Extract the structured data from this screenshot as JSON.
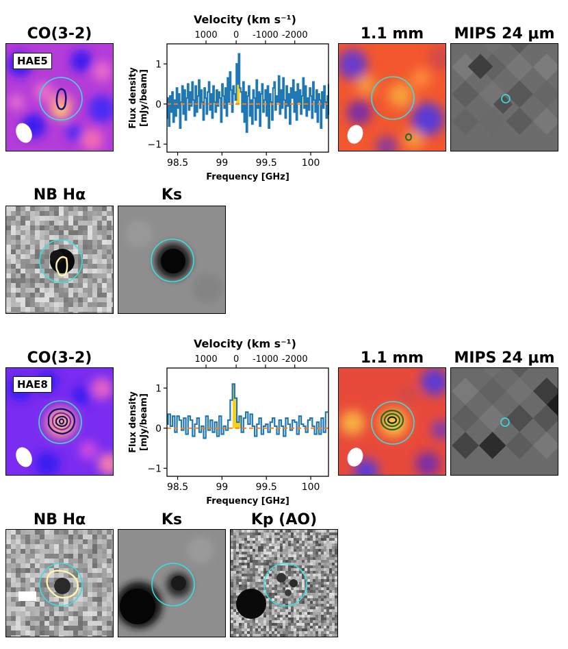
{
  "colors": {
    "spectrum_line": "#1f77b4",
    "zero_line": "#ff7f0e",
    "line_fill": "#f7d11a",
    "aperture": "#38e0e0",
    "co_contour": "#0d0b7a",
    "mm_contour": "#1e6b1e",
    "ha_contour": "#fff3b0"
  },
  "source1": {
    "id": "HAE5",
    "titles": {
      "co": "CO(3-2)",
      "mm": "1.1 mm",
      "mips": "MIPS 24 μm",
      "nb": "NB Hα",
      "ks": "Ks"
    }
  },
  "source2": {
    "id": "HAE8",
    "titles": {
      "co": "CO(3-2)",
      "mm": "1.1 mm",
      "mips": "MIPS 24 μm",
      "nb": "NB Hα",
      "ks": "Ks",
      "kp": "Kp (AO)"
    }
  },
  "chart_data": [
    {
      "type": "line",
      "source": "HAE5",
      "drawstyle": "steps-mid",
      "xlabel": "Frequency [GHz]",
      "ylabel": "Flux density [mJy/beam]",
      "top_xlabel": "Velocity (km s⁻¹)",
      "top_tick_labels": [
        "1000",
        "0",
        "-1000",
        "-2000"
      ],
      "top_tick_freq": [
        98.82,
        99.16,
        99.49,
        99.82
      ],
      "xlim": [
        98.38,
        100.2
      ],
      "ylim": [
        -1.2,
        1.5
      ],
      "xticks": [
        98.5,
        99,
        99.5,
        100
      ],
      "xtick_labels": [
        "98.5",
        "99",
        "99.5",
        "100"
      ],
      "yticks": [
        -1,
        0,
        1
      ],
      "ytick_labels": [
        "−1",
        "0",
        "1"
      ],
      "highlight_range": [
        99.16,
        99.2
      ],
      "x_start": 98.38,
      "x_step": 0.0125,
      "values": [
        -0.35,
        0.15,
        -0.55,
        0.2,
        -0.2,
        0.3,
        -0.45,
        0.1,
        -0.3,
        0.4,
        -0.1,
        0.25,
        -0.6,
        0.05,
        0.45,
        -0.25,
        0.35,
        -0.4,
        0.15,
        0.5,
        -0.15,
        0.3,
        -0.05,
        0.55,
        0.1,
        -0.3,
        0.45,
        -0.2,
        0.2,
        0.6,
        -0.1,
        0.35,
        0.05,
        -0.4,
        0.4,
        0.15,
        -0.25,
        0.3,
        0.55,
        -0.15,
        0.25,
        -0.35,
        0.45,
        0.05,
        -0.2,
        0.35,
        -0.05,
        0.3,
        0.15,
        -0.45,
        0.5,
        0.2,
        -0.1,
        0.4,
        -0.3,
        0.65,
        0.05,
        0.8,
        0.35,
        -0.2,
        0.45,
        0.25,
        0.1,
        1.0,
        0.5,
        1.25,
        0.4,
        0.3,
        -0.2,
        0.55,
        -0.45,
        0.3,
        -0.7,
        0.2,
        0.45,
        -0.3,
        0.1,
        -0.5,
        0.35,
        0.15,
        -0.4,
        0.6,
        -0.1,
        0.3,
        -0.55,
        0.25,
        0.5,
        -0.2,
        0.1,
        0.35,
        -0.3,
        0.45,
        -0.6,
        0.25,
        0.05,
        -0.4,
        0.4,
        0.55,
        -0.15,
        0.2,
        0.05,
        0.7,
        -0.25,
        0.35,
        -0.1,
        0.65,
        0.1,
        -0.35,
        0.45,
        -0.05,
        0.25,
        -0.5,
        0.4,
        0.15,
        0.6,
        -0.2,
        0.3,
        -0.4,
        0.5,
        0.05,
        0.35,
        -0.25,
        0.2,
        0.65,
        -0.1,
        0.45,
        -0.3,
        0.15,
        -0.15,
        0.4,
        0.2,
        -0.35,
        0.55,
        0.1,
        -0.2,
        0.35,
        -0.45,
        0.25,
        0.1,
        -0.6,
        0.3,
        -0.1,
        0.45,
        0.05,
        -0.35,
        0.2,
        -0.25,
        0.5,
        -0.05
      ]
    },
    {
      "type": "line",
      "source": "HAE8",
      "drawstyle": "steps-mid",
      "xlabel": "Frequency [GHz]",
      "ylabel": "Flux density [mJy/beam]",
      "top_xlabel": "Velocity (km s⁻¹)",
      "top_tick_labels": [
        "1000",
        "0",
        "-1000",
        "-2000"
      ],
      "top_tick_freq": [
        98.82,
        99.16,
        99.49,
        99.82
      ],
      "xlim": [
        98.38,
        100.2
      ],
      "ylim": [
        -1.2,
        1.5
      ],
      "xticks": [
        98.5,
        99,
        99.5,
        100
      ],
      "xtick_labels": [
        "98.5",
        "99",
        "99.5",
        "100"
      ],
      "yticks": [
        -1,
        0,
        1
      ],
      "ytick_labels": [
        "−1",
        "0",
        "1"
      ],
      "highlight_range": [
        99.12,
        99.22
      ],
      "x_start": 98.38,
      "x_step": 0.025,
      "values": [
        0.1,
        0.35,
        0.05,
        0.3,
        -0.1,
        0.3,
        0.2,
        -0.05,
        0.25,
        -0.15,
        0.3,
        0.2,
        -0.2,
        0.1,
        0.25,
        -0.1,
        0.05,
        -0.25,
        0.3,
        -0.05,
        0.2,
        -0.1,
        0.15,
        -0.2,
        0.3,
        -0.15,
        0.05,
        -0.05,
        0.2,
        0.7,
        1.1,
        0.75,
        0.15,
        0.3,
        -0.1,
        0.25,
        0.4,
        0.1,
        0.35,
        0.05,
        -0.2,
        0.1,
        0.25,
        -0.15,
        0.05,
        0.1,
        -0.1,
        0.15,
        0.25,
        0.05,
        -0.15,
        0.2,
        0.05,
        -0.2,
        0.25,
        0.1,
        -0.05,
        0.2,
        0.15,
        -0.15,
        0.3,
        0.1,
        0.05,
        -0.1,
        0.2,
        0.25,
        0.05,
        -0.15,
        0.15,
        -0.15,
        0.25,
        -0.1,
        0.4
      ]
    }
  ]
}
